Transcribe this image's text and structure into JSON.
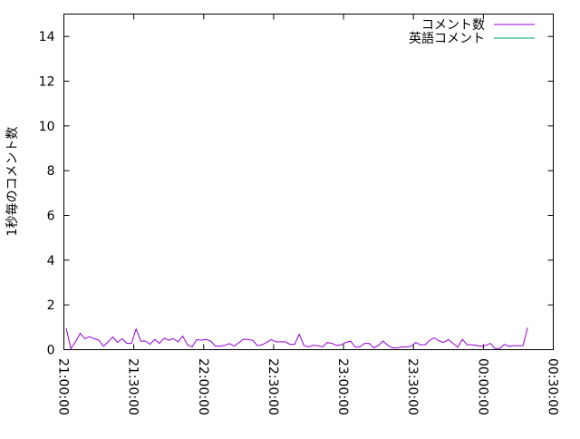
{
  "chart_data": {
    "type": "line",
    "title": "",
    "xlabel": "",
    "ylabel": "1秒毎のコメント数",
    "ylim": [
      0,
      15
    ],
    "yticks": [
      "0",
      "2",
      "4",
      "6",
      "8",
      "10",
      "12",
      "14"
    ],
    "xlim": [
      "21:00:00",
      "00:30:00"
    ],
    "xticks": [
      "21:00:00",
      "21:30:00",
      "22:00:00",
      "22:30:00",
      "23:00:00",
      "23:30:00",
      "00:00:00",
      "00:30:00"
    ],
    "grid": false,
    "legend_position": "top-right",
    "x": [
      "21:01",
      "21:03",
      "21:05",
      "21:07",
      "21:09",
      "21:11",
      "21:13",
      "21:15",
      "21:17",
      "21:19",
      "21:21",
      "21:23",
      "21:25",
      "21:27",
      "21:29",
      "21:31",
      "21:33",
      "21:35",
      "21:37",
      "21:39",
      "21:41",
      "21:43",
      "21:45",
      "21:47",
      "21:49",
      "21:51",
      "21:53",
      "21:55",
      "21:57",
      "21:59",
      "22:01",
      "22:03",
      "22:05",
      "22:07",
      "22:09",
      "22:11",
      "22:13",
      "22:15",
      "22:17",
      "22:19",
      "22:21",
      "22:23",
      "22:25",
      "22:27",
      "22:29",
      "22:31",
      "22:33",
      "22:35",
      "22:37",
      "22:39",
      "22:41",
      "22:43",
      "22:45",
      "22:47",
      "22:49",
      "22:51",
      "22:53",
      "22:55",
      "22:57",
      "22:59",
      "23:01",
      "23:03",
      "23:05",
      "23:07",
      "23:09",
      "23:11",
      "23:13",
      "23:15",
      "23:17",
      "23:19",
      "23:21",
      "23:23",
      "23:25",
      "23:27",
      "23:29",
      "23:31",
      "23:33",
      "23:35",
      "23:37",
      "23:39",
      "23:41",
      "23:43",
      "23:45",
      "23:47",
      "23:49",
      "23:51",
      "23:53",
      "23:55",
      "23:57",
      "23:59",
      "00:01",
      "00:03",
      "00:05",
      "00:07",
      "00:09",
      "00:11",
      "00:13",
      "00:15",
      "00:17",
      "00:19"
    ],
    "series": [
      {
        "name": "コメント数",
        "color": "#9400d3",
        "values": [
          0.95,
          0.05,
          0.35,
          0.73,
          0.49,
          0.58,
          0.49,
          0.42,
          0.15,
          0.35,
          0.57,
          0.32,
          0.49,
          0.28,
          0.28,
          0.93,
          0.38,
          0.38,
          0.24,
          0.46,
          0.28,
          0.51,
          0.42,
          0.49,
          0.35,
          0.61,
          0.22,
          0.12,
          0.45,
          0.42,
          0.46,
          0.38,
          0.16,
          0.16,
          0.19,
          0.27,
          0.16,
          0.3,
          0.47,
          0.45,
          0.42,
          0.18,
          0.22,
          0.32,
          0.45,
          0.35,
          0.35,
          0.35,
          0.24,
          0.24,
          0.69,
          0.19,
          0.12,
          0.2,
          0.18,
          0.12,
          0.32,
          0.28,
          0.19,
          0.22,
          0.32,
          0.38,
          0.12,
          0.12,
          0.28,
          0.28,
          0.08,
          0.19,
          0.38,
          0.19,
          0.08,
          0.08,
          0.12,
          0.12,
          0.15,
          0.32,
          0.22,
          0.22,
          0.42,
          0.53,
          0.39,
          0.32,
          0.45,
          0.28,
          0.11,
          0.46,
          0.22,
          0.22,
          0.19,
          0.15,
          0.19,
          0.28,
          0.05,
          0.05,
          0.24,
          0.15,
          0.18,
          0.18,
          0.18,
          0.99
        ]
      },
      {
        "name": "英語コメント",
        "color": "#009e73",
        "values": [
          0,
          0,
          0,
          0,
          0,
          0,
          0,
          0,
          0,
          0,
          0,
          0,
          0,
          0,
          0,
          0,
          0,
          0,
          0,
          0,
          0,
          0,
          0,
          0,
          0,
          0,
          0,
          0,
          0,
          0,
          0,
          0,
          0,
          0,
          0,
          0,
          0,
          0,
          0,
          0,
          0,
          0,
          0,
          0,
          0,
          0,
          0,
          0,
          0,
          0,
          0,
          0,
          0,
          0,
          0,
          0,
          0,
          0,
          0,
          0,
          0,
          0,
          0,
          0,
          0,
          0,
          0,
          0,
          0,
          0,
          0,
          0,
          0,
          0,
          0,
          0,
          0,
          0,
          0,
          0,
          0,
          0,
          0,
          0,
          0,
          0,
          0,
          0,
          0,
          0,
          0,
          0,
          0,
          0,
          0,
          0,
          0,
          0,
          0,
          0
        ]
      }
    ]
  }
}
